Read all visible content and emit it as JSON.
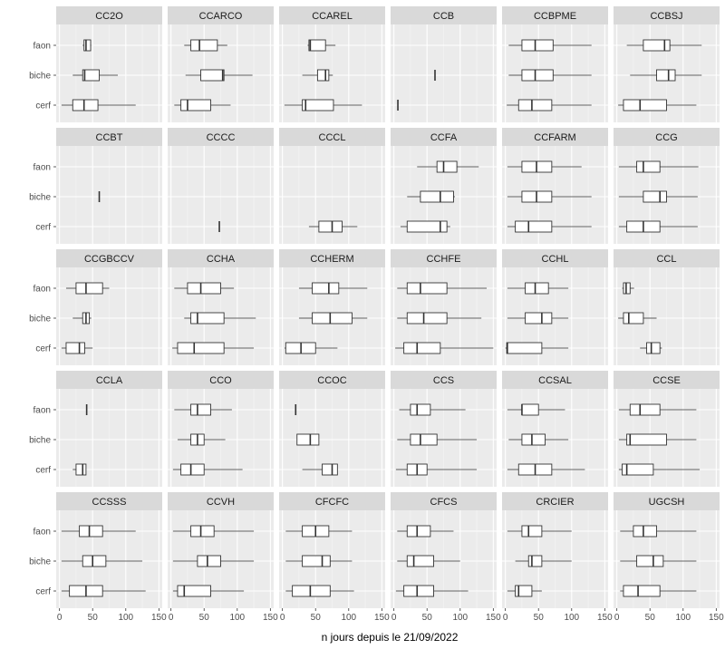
{
  "chart_data": {
    "type": "boxplot",
    "xlabel": "n jours depuis le 21/09/2022",
    "ylabel": "",
    "categories": [
      "faon",
      "biche",
      "cerf"
    ],
    "xlim": [
      -5,
      155
    ],
    "xticks": [
      "0",
      "50",
      "100",
      "150"
    ],
    "xtick_values": [
      0,
      50,
      100,
      150
    ],
    "facets": [
      {
        "name": "CC2O",
        "boxes": [
          {
            "cat": "faon",
            "min": 35,
            "q1": 37,
            "med": 40,
            "q3": 47,
            "max": 48
          },
          {
            "cat": "biche",
            "min": 20,
            "q1": 35,
            "med": 38,
            "q3": 60,
            "max": 88
          },
          {
            "cat": "cerf",
            "min": 3,
            "q1": 20,
            "med": 37,
            "q3": 58,
            "max": 115
          }
        ]
      },
      {
        "name": "CCARCO",
        "boxes": [
          {
            "cat": "faon",
            "min": 20,
            "q1": 30,
            "med": 43,
            "q3": 70,
            "max": 85
          },
          {
            "cat": "biche",
            "min": 22,
            "q1": 45,
            "med": 78,
            "q3": 80,
            "max": 123
          },
          {
            "cat": "cerf",
            "min": 5,
            "q1": 15,
            "med": 25,
            "q3": 60,
            "max": 90
          }
        ]
      },
      {
        "name": "CCAREL",
        "boxes": [
          {
            "cat": "faon",
            "min": 38,
            "q1": 40,
            "med": 42,
            "q3": 65,
            "max": 80
          },
          {
            "cat": "biche",
            "min": 30,
            "q1": 53,
            "med": 65,
            "q3": 70,
            "max": 76
          },
          {
            "cat": "cerf",
            "min": 3,
            "q1": 30,
            "med": 35,
            "q3": 77,
            "max": 120
          }
        ]
      },
      {
        "name": "CCB",
        "boxes": [
          {
            "cat": "biche",
            "min": 62,
            "q1": 62,
            "med": 62,
            "q3": 62,
            "max": 62
          },
          {
            "cat": "cerf",
            "min": 6,
            "q1": 6,
            "med": 6,
            "q3": 6,
            "max": 6
          }
        ]
      },
      {
        "name": "CCBPME",
        "boxes": [
          {
            "cat": "faon",
            "min": 5,
            "q1": 25,
            "med": 45,
            "q3": 72,
            "max": 130
          },
          {
            "cat": "biche",
            "min": 5,
            "q1": 25,
            "med": 45,
            "q3": 72,
            "max": 130
          },
          {
            "cat": "cerf",
            "min": 2,
            "q1": 20,
            "med": 40,
            "q3": 70,
            "max": 130
          }
        ]
      },
      {
        "name": "CCBSJ",
        "boxes": [
          {
            "cat": "faon",
            "min": 15,
            "q1": 40,
            "med": 72,
            "q3": 80,
            "max": 128
          },
          {
            "cat": "biche",
            "min": 20,
            "q1": 60,
            "med": 78,
            "q3": 88,
            "max": 128
          },
          {
            "cat": "cerf",
            "min": 2,
            "q1": 10,
            "med": 35,
            "q3": 75,
            "max": 120
          }
        ]
      },
      {
        "name": "CCBT",
        "boxes": [
          {
            "cat": "biche",
            "min": 60,
            "q1": 60,
            "med": 60,
            "q3": 60,
            "max": 60
          }
        ]
      },
      {
        "name": "CCCC",
        "boxes": [
          {
            "cat": "cerf",
            "min": 73,
            "q1": 73,
            "med": 73,
            "q3": 73,
            "max": 73
          }
        ]
      },
      {
        "name": "CCCL",
        "boxes": [
          {
            "cat": "cerf",
            "min": 40,
            "q1": 55,
            "med": 75,
            "q3": 90,
            "max": 113
          }
        ]
      },
      {
        "name": "CCFA",
        "boxes": [
          {
            "cat": "faon",
            "min": 35,
            "q1": 65,
            "med": 75,
            "q3": 95,
            "max": 128
          },
          {
            "cat": "biche",
            "min": 20,
            "q1": 40,
            "med": 70,
            "q3": 90,
            "max": 92
          },
          {
            "cat": "cerf",
            "min": 10,
            "q1": 20,
            "med": 70,
            "q3": 80,
            "max": 85
          }
        ]
      },
      {
        "name": "CCFARM",
        "boxes": [
          {
            "cat": "faon",
            "min": 3,
            "q1": 25,
            "med": 47,
            "q3": 70,
            "max": 115
          },
          {
            "cat": "biche",
            "min": 3,
            "q1": 25,
            "med": 47,
            "q3": 70,
            "max": 130
          },
          {
            "cat": "cerf",
            "min": 3,
            "q1": 15,
            "med": 35,
            "q3": 70,
            "max": 130
          }
        ]
      },
      {
        "name": "CCG",
        "boxes": [
          {
            "cat": "faon",
            "min": 3,
            "q1": 30,
            "med": 40,
            "q3": 65,
            "max": 123
          },
          {
            "cat": "biche",
            "min": 3,
            "q1": 40,
            "med": 65,
            "q3": 75,
            "max": 122
          },
          {
            "cat": "cerf",
            "min": 3,
            "q1": 15,
            "med": 40,
            "q3": 65,
            "max": 122
          }
        ]
      },
      {
        "name": "CCGBCCV",
        "boxes": [
          {
            "cat": "faon",
            "min": 10,
            "q1": 25,
            "med": 40,
            "q3": 65,
            "max": 75
          },
          {
            "cat": "biche",
            "min": 20,
            "q1": 35,
            "med": 40,
            "q3": 45,
            "max": 48
          },
          {
            "cat": "cerf",
            "min": 3,
            "q1": 10,
            "med": 30,
            "q3": 38,
            "max": 50
          }
        ]
      },
      {
        "name": "CCHA",
        "boxes": [
          {
            "cat": "faon",
            "min": 5,
            "q1": 25,
            "med": 45,
            "q3": 75,
            "max": 95
          },
          {
            "cat": "biche",
            "min": 20,
            "q1": 30,
            "med": 40,
            "q3": 80,
            "max": 128
          },
          {
            "cat": "cerf",
            "min": 2,
            "q1": 10,
            "med": 35,
            "q3": 80,
            "max": 125
          }
        ]
      },
      {
        "name": "CCHERM",
        "boxes": [
          {
            "cat": "faon",
            "min": 25,
            "q1": 45,
            "med": 70,
            "q3": 85,
            "max": 128
          },
          {
            "cat": "biche",
            "min": 25,
            "q1": 45,
            "med": 72,
            "q3": 105,
            "max": 128
          },
          {
            "cat": "cerf",
            "min": 3,
            "q1": 5,
            "med": 28,
            "q3": 50,
            "max": 83
          }
        ]
      },
      {
        "name": "CCHFE",
        "boxes": [
          {
            "cat": "faon",
            "min": 5,
            "q1": 20,
            "med": 40,
            "q3": 80,
            "max": 140
          },
          {
            "cat": "biche",
            "min": 5,
            "q1": 20,
            "med": 45,
            "q3": 80,
            "max": 132
          },
          {
            "cat": "cerf",
            "min": 2,
            "q1": 15,
            "med": 35,
            "q3": 70,
            "max": 150
          }
        ]
      },
      {
        "name": "CCHL",
        "boxes": [
          {
            "cat": "faon",
            "min": 3,
            "q1": 30,
            "med": 45,
            "q3": 65,
            "max": 95
          },
          {
            "cat": "biche",
            "min": 3,
            "q1": 30,
            "med": 55,
            "q3": 70,
            "max": 95
          },
          {
            "cat": "cerf",
            "min": 0,
            "q1": 2,
            "med": 3,
            "q3": 55,
            "max": 95
          }
        ]
      },
      {
        "name": "CCL",
        "boxes": [
          {
            "cat": "faon",
            "min": 8,
            "q1": 10,
            "med": 14,
            "q3": 20,
            "max": 26
          },
          {
            "cat": "biche",
            "min": 2,
            "q1": 10,
            "med": 18,
            "q3": 40,
            "max": 60
          },
          {
            "cat": "cerf",
            "min": 35,
            "q1": 45,
            "med": 52,
            "q3": 65,
            "max": 68
          }
        ]
      },
      {
        "name": "CCLA",
        "boxes": [
          {
            "cat": "faon",
            "min": 41,
            "q1": 41,
            "med": 41,
            "q3": 41,
            "max": 41
          },
          {
            "cat": "cerf",
            "min": 20,
            "q1": 25,
            "med": 35,
            "q3": 40,
            "max": 40
          }
        ]
      },
      {
        "name": "CCO",
        "boxes": [
          {
            "cat": "faon",
            "min": 5,
            "q1": 30,
            "med": 40,
            "q3": 60,
            "max": 92
          },
          {
            "cat": "biche",
            "min": 10,
            "q1": 30,
            "med": 40,
            "q3": 50,
            "max": 82
          },
          {
            "cat": "cerf",
            "min": 3,
            "q1": 15,
            "med": 30,
            "q3": 50,
            "max": 108
          }
        ]
      },
      {
        "name": "CCOC",
        "boxes": [
          {
            "cat": "faon",
            "min": 20,
            "q1": 20,
            "med": 20,
            "q3": 20,
            "max": 20
          },
          {
            "cat": "biche",
            "min": 22,
            "q1": 22,
            "med": 42,
            "q3": 55,
            "max": 55
          },
          {
            "cat": "cerf",
            "min": 30,
            "q1": 60,
            "med": 75,
            "q3": 83,
            "max": 83
          }
        ]
      },
      {
        "name": "CCS",
        "boxes": [
          {
            "cat": "faon",
            "min": 8,
            "q1": 25,
            "med": 35,
            "q3": 55,
            "max": 108
          },
          {
            "cat": "biche",
            "min": 5,
            "q1": 25,
            "med": 40,
            "q3": 65,
            "max": 125
          },
          {
            "cat": "cerf",
            "min": 3,
            "q1": 20,
            "med": 35,
            "q3": 50,
            "max": 125
          }
        ]
      },
      {
        "name": "CCSAL",
        "boxes": [
          {
            "cat": "faon",
            "min": 3,
            "q1": 25,
            "med": 25,
            "q3": 50,
            "max": 90
          },
          {
            "cat": "biche",
            "min": 5,
            "q1": 25,
            "med": 40,
            "q3": 60,
            "max": 95
          },
          {
            "cat": "cerf",
            "min": 3,
            "q1": 20,
            "med": 45,
            "q3": 70,
            "max": 120
          }
        ]
      },
      {
        "name": "CCSE",
        "boxes": [
          {
            "cat": "faon",
            "min": 3,
            "q1": 20,
            "med": 35,
            "q3": 65,
            "max": 120
          },
          {
            "cat": "biche",
            "min": 3,
            "q1": 15,
            "med": 20,
            "q3": 75,
            "max": 120
          },
          {
            "cat": "cerf",
            "min": 3,
            "q1": 8,
            "med": 15,
            "q3": 55,
            "max": 125
          }
        ]
      },
      {
        "name": "CCSSS",
        "boxes": [
          {
            "cat": "faon",
            "min": 3,
            "q1": 30,
            "med": 45,
            "q3": 65,
            "max": 115
          },
          {
            "cat": "biche",
            "min": 3,
            "q1": 35,
            "med": 50,
            "q3": 70,
            "max": 125
          },
          {
            "cat": "cerf",
            "min": 3,
            "q1": 15,
            "med": 40,
            "q3": 65,
            "max": 130
          }
        ]
      },
      {
        "name": "CCVH",
        "boxes": [
          {
            "cat": "faon",
            "min": 3,
            "q1": 30,
            "med": 45,
            "q3": 65,
            "max": 125
          },
          {
            "cat": "biche",
            "min": 3,
            "q1": 40,
            "med": 55,
            "q3": 75,
            "max": 125
          },
          {
            "cat": "cerf",
            "min": 3,
            "q1": 10,
            "med": 20,
            "q3": 60,
            "max": 110
          }
        ]
      },
      {
        "name": "CFCFC",
        "boxes": [
          {
            "cat": "faon",
            "min": 5,
            "q1": 30,
            "med": 50,
            "q3": 70,
            "max": 105
          },
          {
            "cat": "biche",
            "min": 5,
            "q1": 30,
            "med": 60,
            "q3": 72,
            "max": 105
          },
          {
            "cat": "cerf",
            "min": 5,
            "q1": 15,
            "med": 42,
            "q3": 72,
            "max": 108
          }
        ]
      },
      {
        "name": "CFCS",
        "boxes": [
          {
            "cat": "faon",
            "min": 5,
            "q1": 20,
            "med": 35,
            "q3": 55,
            "max": 90
          },
          {
            "cat": "biche",
            "min": 5,
            "q1": 20,
            "med": 30,
            "q3": 60,
            "max": 100
          },
          {
            "cat": "cerf",
            "min": 3,
            "q1": 15,
            "med": 35,
            "q3": 60,
            "max": 112
          }
        ]
      },
      {
        "name": "CRCIER",
        "boxes": [
          {
            "cat": "faon",
            "min": 3,
            "q1": 25,
            "med": 35,
            "q3": 55,
            "max": 100
          },
          {
            "cat": "biche",
            "min": 15,
            "q1": 35,
            "med": 40,
            "q3": 55,
            "max": 100
          },
          {
            "cat": "cerf",
            "min": 3,
            "q1": 15,
            "med": 20,
            "q3": 40,
            "max": 55
          }
        ]
      },
      {
        "name": "UGCSH",
        "boxes": [
          {
            "cat": "faon",
            "min": 5,
            "q1": 25,
            "med": 40,
            "q3": 60,
            "max": 120
          },
          {
            "cat": "biche",
            "min": 5,
            "q1": 30,
            "med": 55,
            "q3": 70,
            "max": 120
          },
          {
            "cat": "cerf",
            "min": 5,
            "q1": 10,
            "med": 32,
            "q3": 65,
            "max": 120
          }
        ]
      }
    ]
  }
}
